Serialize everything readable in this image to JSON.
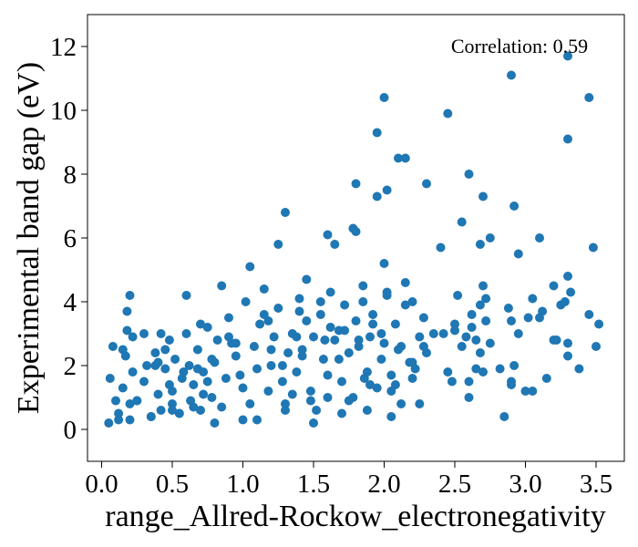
{
  "chart_data": {
    "type": "scatter",
    "title": "",
    "xlabel": "range_Allred-Rockow_electronegativity",
    "ylabel": "Experimental band gap (eV)",
    "annotation": "Correlation: 0.59",
    "xlim": [
      -0.1,
      3.7
    ],
    "ylim": [
      -1.0,
      13.0
    ],
    "xticks": [
      0.0,
      0.5,
      1.0,
      1.5,
      2.0,
      2.5,
      3.0,
      3.5
    ],
    "xtick_labels": [
      "0.0",
      "0.5",
      "1.0",
      "1.5",
      "2.0",
      "2.5",
      "3.0",
      "3.5"
    ],
    "yticks": [
      0,
      2,
      4,
      6,
      8,
      10,
      12
    ],
    "ytick_labels": [
      "0",
      "2",
      "4",
      "6",
      "8",
      "10",
      "12"
    ],
    "grid": false,
    "marker_color": "#1f77b4",
    "x": [
      0.06,
      0.08,
      0.1,
      0.12,
      0.15,
      0.17,
      0.18,
      0.2,
      0.2,
      0.22,
      0.25,
      0.3,
      0.32,
      0.35,
      0.38,
      0.4,
      0.42,
      0.45,
      0.48,
      0.5,
      0.5,
      0.52,
      0.55,
      0.57,
      0.6,
      0.62,
      0.63,
      0.65,
      0.68,
      0.7,
      0.72,
      0.75,
      0.78,
      0.8,
      0.82,
      0.85,
      0.88,
      0.9,
      0.95,
      1.0,
      1.02,
      1.05,
      1.08,
      1.1,
      1.12,
      1.15,
      1.18,
      1.2,
      1.22,
      1.25,
      1.28,
      1.3,
      1.32,
      1.35,
      1.38,
      1.4,
      1.42,
      1.45,
      1.48,
      1.5,
      1.52,
      1.55,
      1.57,
      1.6,
      1.62,
      1.65,
      1.68,
      1.7,
      1.72,
      1.75,
      1.78,
      1.8,
      1.82,
      1.85,
      1.88,
      1.9,
      1.92,
      1.95,
      1.98,
      2.0,
      2.02,
      2.05,
      2.08,
      2.1,
      2.12,
      2.15,
      2.18,
      2.2,
      2.22,
      2.25,
      2.28,
      2.3,
      2.45,
      2.5,
      2.52,
      2.55,
      2.6,
      2.62,
      2.65,
      2.68,
      2.7,
      2.72,
      2.75,
      2.9,
      2.92,
      2.95,
      3.05,
      3.1,
      3.15,
      3.2,
      3.25,
      3.3,
      3.32,
      3.45,
      3.5,
      0.05,
      0.12,
      0.2,
      0.35,
      0.55,
      0.65,
      0.8,
      1.0,
      1.3,
      1.6,
      1.75,
      1.9,
      2.05,
      2.2,
      2.6,
      2.9,
      3.3,
      0.3,
      0.45,
      0.7,
      0.9,
      1.15,
      1.4,
      1.55,
      1.85,
      2.0,
      2.15,
      2.4,
      2.7,
      2.95,
      0.18,
      0.42,
      0.6,
      0.85,
      1.05,
      1.25,
      1.45,
      1.65,
      1.8,
      1.95,
      2.1,
      2.3,
      2.55,
      2.75,
      2.92,
      3.1,
      0.25,
      0.5,
      0.75,
      1.1,
      1.35,
      1.5,
      1.7,
      1.88,
      2.05,
      2.25,
      2.48,
      2.65,
      2.85,
      3.0,
      0.38,
      0.58,
      0.78,
      0.95,
      1.2,
      1.42,
      1.58,
      1.72,
      1.92,
      2.12,
      2.35,
      2.58,
      2.72,
      2.88,
      3.05,
      3.3,
      3.48,
      0.15,
      0.4,
      0.68,
      0.92,
      1.18,
      1.38,
      1.62,
      1.82,
      2.02,
      2.2,
      2.42,
      2.62,
      2.82,
      3.02,
      3.22,
      3.38,
      3.52,
      0.22,
      0.48,
      0.72,
      0.98,
      1.28,
      1.48,
      1.68,
      1.86,
      1.98,
      2.08,
      2.28,
      2.5,
      2.68,
      2.9,
      3.12,
      3.28,
      1.3,
      2.0,
      2.02,
      1.95,
      2.15,
      2.45,
      2.6,
      2.9,
      3.2,
      3.3,
      3.45,
      3.3,
      2.7,
      2.68,
      1.78,
      1.6,
      1.8
    ],
    "y": [
      1.6,
      2.6,
      0.9,
      0.5,
      1.3,
      2.3,
      3.7,
      4.2,
      0.3,
      1.8,
      0.9,
      1.5,
      2.0,
      0.4,
      2.4,
      1.1,
      0.6,
      1.9,
      2.8,
      0.8,
      1.2,
      2.2,
      0.5,
      1.6,
      3.0,
      2.0,
      0.9,
      1.4,
      2.5,
      0.6,
      1.8,
      3.2,
      1.0,
      2.1,
      2.8,
      0.7,
      1.6,
      3.5,
      2.3,
      1.3,
      4.0,
      0.8,
      2.6,
      1.9,
      3.3,
      4.4,
      1.2,
      2.0,
      2.9,
      3.8,
      1.5,
      0.8,
      2.4,
      3.0,
      1.8,
      4.1,
      2.5,
      3.4,
      1.2,
      2.9,
      0.6,
      3.6,
      2.2,
      1.7,
      4.3,
      2.8,
      3.1,
      1.5,
      3.9,
      2.4,
      1.0,
      3.4,
      2.6,
      4.0,
      1.8,
      2.9,
      3.6,
      1.3,
      2.2,
      2.7,
      4.2,
      1.7,
      3.3,
      2.5,
      0.8,
      3.9,
      2.1,
      4.0,
      1.9,
      2.9,
      3.5,
      2.4,
      1.8,
      3.3,
      4.2,
      2.6,
      1.5,
      3.6,
      2.8,
      3.9,
      1.8,
      4.1,
      2.7,
      3.4,
      2.0,
      3.0,
      1.2,
      3.5,
      1.6,
      2.8,
      3.9,
      2.7,
      4.3,
      3.6,
      2.6,
      0.2,
      0.3,
      0.8,
      0.4,
      0.5,
      0.7,
      0.2,
      0.3,
      0.6,
      1.0,
      0.9,
      1.4,
      1.2,
      1.6,
      1.0,
      1.4,
      2.3,
      3.0,
      2.5,
      3.3,
      2.9,
      3.6,
      3.7,
      4.0,
      4.5,
      5.2,
      4.6,
      5.7,
      4.5,
      5.5,
      3.1,
      3.0,
      4.2,
      4.5,
      5.1,
      5.8,
      4.7,
      5.8,
      6.2,
      7.3,
      8.5,
      7.7,
      6.5,
      6.0,
      7.0,
      6.0,
      0.9,
      0.6,
      1.5,
      0.3,
      1.1,
      0.2,
      0.5,
      0.6,
      0.4,
      0.8,
      1.5,
      1.9,
      0.4,
      1.2,
      2.0,
      1.8,
      2.2,
      2.7,
      2.5,
      2.3,
      2.8,
      3.1,
      3.3,
      2.6,
      3.0,
      2.9,
      3.4,
      3.8,
      4.1,
      4.8,
      5.7,
      2.5,
      2.1,
      1.9,
      2.7,
      3.4,
      2.9,
      3.2,
      2.8,
      4.3,
      2.1,
      3.0,
      3.2,
      1.9,
      3.5,
      2.8,
      1.9,
      3.3,
      2.9,
      1.4,
      1.1,
      1.7,
      2.0,
      0.9,
      2.2,
      1.6,
      3.0,
      1.4,
      2.6,
      3.1,
      2.4,
      1.5,
      3.7,
      4.0,
      6.8,
      10.4,
      7.5,
      9.3,
      8.5,
      9.9,
      8.0,
      11.1,
      4.5,
      11.7,
      10.4,
      9.1,
      7.3,
      5.8,
      6.3,
      6.1,
      7.7
    ],
    "series": []
  }
}
